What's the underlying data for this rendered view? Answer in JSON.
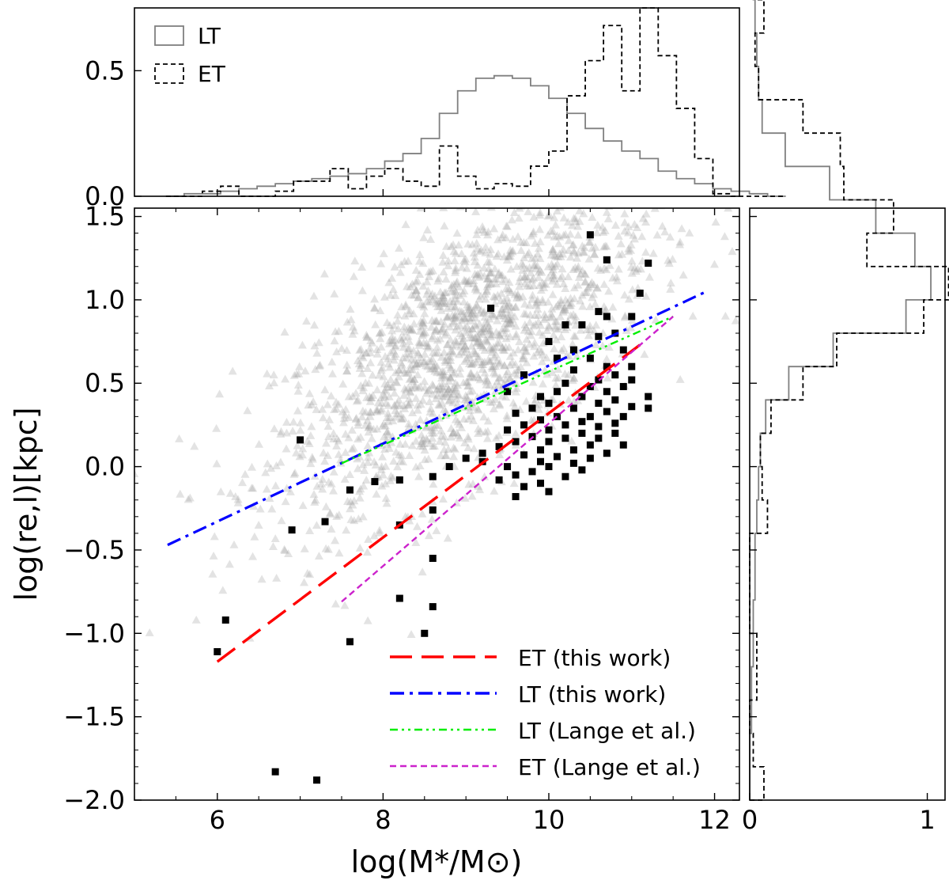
{
  "chart_data": [
    {
      "panel": "main-scatter",
      "type": "scatter",
      "xlabel": "log(M*/M⊙)",
      "ylabel": "log(re,l)[kpc]",
      "xlim": [
        5.0,
        12.3
      ],
      "ylim": [
        -2.0,
        1.55
      ],
      "xticks": [
        6,
        8,
        10,
        12
      ],
      "xtick_labels": [
        "6",
        "8",
        "10",
        "12"
      ],
      "yticks": [
        -2.0,
        -1.5,
        -1.0,
        -0.5,
        0.0,
        0.5,
        1.0,
        1.5
      ],
      "ytick_labels": [
        "−2.0",
        "−1.5",
        "−1.0",
        "−0.5",
        "0.0",
        "0.5",
        "1.0",
        "1.5"
      ],
      "legend_position": "lower-right",
      "scatter_series": [
        {
          "name": "LT",
          "marker": "triangle",
          "color": "#999999",
          "description": "late-type galaxies (dense cloud, ~2000 points centred near log M*=9, log re=0.3)",
          "center": [
            9.0,
            0.3
          ],
          "n_points": 1800
        },
        {
          "name": "ET",
          "marker": "square",
          "color": "#000000",
          "points": [
            [
              10.5,
              1.39
            ],
            [
              10.7,
              1.24
            ],
            [
              11.2,
              1.22
            ],
            [
              11.1,
              1.04
            ],
            [
              10.6,
              0.93
            ],
            [
              9.3,
              0.95
            ],
            [
              10.7,
              0.9
            ],
            [
              11.0,
              0.9
            ],
            [
              10.2,
              0.85
            ],
            [
              10.4,
              0.85
            ],
            [
              10.8,
              0.8
            ],
            [
              10.6,
              0.78
            ],
            [
              10.0,
              0.75
            ],
            [
              10.3,
              0.7
            ],
            [
              10.9,
              0.7
            ],
            [
              10.1,
              0.65
            ],
            [
              10.5,
              0.65
            ],
            [
              10.7,
              0.6
            ],
            [
              11.0,
              0.6
            ],
            [
              10.3,
              0.58
            ],
            [
              10.8,
              0.55
            ],
            [
              9.7,
              0.55
            ],
            [
              10.6,
              0.52
            ],
            [
              11.0,
              0.52
            ],
            [
              10.2,
              0.5
            ],
            [
              10.5,
              0.48
            ],
            [
              10.9,
              0.48
            ],
            [
              9.5,
              0.45
            ],
            [
              10.1,
              0.45
            ],
            [
              10.7,
              0.45
            ],
            [
              9.9,
              0.42
            ],
            [
              10.4,
              0.42
            ],
            [
              10.8,
              0.4
            ],
            [
              11.2,
              0.42
            ],
            [
              10.0,
              0.38
            ],
            [
              10.6,
              0.38
            ],
            [
              11.0,
              0.36
            ],
            [
              9.8,
              0.35
            ],
            [
              10.3,
              0.35
            ],
            [
              10.7,
              0.33
            ],
            [
              11.2,
              0.35
            ],
            [
              9.6,
              0.32
            ],
            [
              10.1,
              0.3
            ],
            [
              10.5,
              0.3
            ],
            [
              10.9,
              0.3
            ],
            [
              9.9,
              0.28
            ],
            [
              10.4,
              0.27
            ],
            [
              10.8,
              0.26
            ],
            [
              9.7,
              0.25
            ],
            [
              10.2,
              0.25
            ],
            [
              10.6,
              0.24
            ],
            [
              9.5,
              0.22
            ],
            [
              10.0,
              0.22
            ],
            [
              10.4,
              0.2
            ],
            [
              10.8,
              0.2
            ],
            [
              9.8,
              0.18
            ],
            [
              10.2,
              0.17
            ],
            [
              10.6,
              0.17
            ],
            [
              9.6,
              0.15
            ],
            [
              10.0,
              0.15
            ],
            [
              10.5,
              0.13
            ],
            [
              10.9,
              0.13
            ],
            [
              9.4,
              0.12
            ],
            [
              9.9,
              0.1
            ],
            [
              10.3,
              0.1
            ],
            [
              10.7,
              0.08
            ],
            [
              9.2,
              0.08
            ],
            [
              9.7,
              0.07
            ],
            [
              10.1,
              0.06
            ],
            [
              10.5,
              0.05
            ],
            [
              9.9,
              0.03
            ],
            [
              10.3,
              0.02
            ],
            [
              9.5,
              0.0
            ],
            [
              10.0,
              0.0
            ],
            [
              10.4,
              -0.02
            ],
            [
              9.8,
              -0.03
            ],
            [
              9.2,
              0.03
            ],
            [
              9.6,
              -0.05
            ],
            [
              10.2,
              -0.06
            ],
            [
              9.4,
              -0.08
            ],
            [
              9.9,
              -0.1
            ],
            [
              9.7,
              -0.12
            ],
            [
              10.0,
              -0.15
            ],
            [
              9.6,
              -0.18
            ],
            [
              9.0,
              0.05
            ],
            [
              8.8,
              0.0
            ],
            [
              8.6,
              -0.06
            ],
            [
              8.2,
              -0.08
            ],
            [
              7.9,
              -0.09
            ],
            [
              7.6,
              -0.14
            ],
            [
              7.3,
              -0.33
            ],
            [
              6.9,
              -0.38
            ],
            [
              8.6,
              -0.26
            ],
            [
              8.2,
              -0.35
            ],
            [
              8.6,
              -0.55
            ],
            [
              8.2,
              -0.79
            ],
            [
              8.6,
              -0.84
            ],
            [
              8.5,
              -1.0
            ],
            [
              7.6,
              -1.05
            ],
            [
              6.1,
              -0.92
            ],
            [
              6.0,
              -1.11
            ],
            [
              7.0,
              0.16
            ],
            [
              6.7,
              -1.83
            ],
            [
              7.2,
              -1.88
            ]
          ]
        }
      ],
      "fit_lines": [
        {
          "name": "ET (this work)",
          "style": "long-dash",
          "color": "#ff0000",
          "x": [
            6.0,
            11.1
          ],
          "y": [
            -1.17,
            0.73
          ]
        },
        {
          "name": "LT (this work)",
          "style": "dash-dot",
          "color": "#0000ff",
          "x": [
            5.4,
            11.9
          ],
          "y": [
            -0.47,
            1.05
          ]
        },
        {
          "name": "LT (Lange et al.)",
          "style": "dash-dot-dot",
          "color": "#00ee00",
          "x": [
            7.5,
            11.5
          ],
          "y": [
            0.02,
            0.9
          ]
        },
        {
          "name": "ET (Lange et al.)",
          "style": "short-dash",
          "color": "#cc22cc",
          "x": [
            7.5,
            11.5
          ],
          "y": [
            -0.81,
            0.9
          ]
        }
      ],
      "legend": [
        "ET (this work)",
        "LT (this work)",
        "LT (Lange et al.)",
        "ET (Lange et al.)"
      ]
    },
    {
      "panel": "top-histogram",
      "type": "histogram",
      "xlim": [
        5.0,
        12.3
      ],
      "ylim": [
        0.0,
        0.75
      ],
      "yticks": [
        0.0,
        0.5
      ],
      "ytick_labels": [
        "0.0",
        "0.5"
      ],
      "legend_position": "top-left",
      "legend": [
        "LT",
        "ET"
      ],
      "bin_width": 0.22,
      "bin_start": 5.38,
      "series": [
        {
          "name": "LT",
          "style": "solid",
          "color": "#808080",
          "values": [
            0.0,
            0.01,
            0.01,
            0.02,
            0.03,
            0.04,
            0.05,
            0.06,
            0.07,
            0.08,
            0.09,
            0.11,
            0.14,
            0.17,
            0.23,
            0.33,
            0.42,
            0.47,
            0.48,
            0.47,
            0.44,
            0.39,
            0.33,
            0.27,
            0.22,
            0.18,
            0.15,
            0.1,
            0.07,
            0.05,
            0.03,
            0.02,
            0.01,
            0.0
          ]
        },
        {
          "name": "ET",
          "style": "dashed",
          "color": "#000000",
          "values": [
            0.0,
            0.0,
            0.02,
            0.04,
            0.0,
            0.0,
            0.02,
            0.06,
            0.06,
            0.11,
            0.03,
            0.08,
            0.11,
            0.06,
            0.04,
            0.2,
            0.08,
            0.03,
            0.05,
            0.04,
            0.12,
            0.18,
            0.4,
            0.54,
            0.68,
            0.42,
            0.75,
            0.56,
            0.35,
            0.15,
            0.01,
            0.0,
            0.0,
            0.0
          ]
        }
      ]
    },
    {
      "panel": "right-histogram",
      "type": "histogram",
      "orientation": "horizontal",
      "xlim": [
        0.0,
        1.1
      ],
      "xticks": [
        0,
        1
      ],
      "xtick_labels": [
        "0",
        "1"
      ],
      "bin_width": 0.2,
      "bin_start": -2.0,
      "series": [
        {
          "name": "LT",
          "style": "solid",
          "color": "#808080",
          "values": [
            0.0,
            0.0,
            0.01,
            0.01,
            0.02,
            0.02,
            0.03,
            0.03,
            0.04,
            0.05,
            0.06,
            0.09,
            0.22,
            0.47,
            0.88,
            1.02,
            0.93,
            0.71,
            0.45,
            0.2,
            0.07,
            0.05,
            0.04,
            0.03,
            0.02
          ]
        },
        {
          "name": "ET",
          "style": "dashed",
          "color": "#000000",
          "values": [
            0.08,
            0.02,
            0.0,
            0.04,
            0.04,
            0.0,
            0.0,
            0.0,
            0.1,
            0.07,
            0.06,
            0.12,
            0.3,
            0.49,
            0.98,
            1.12,
            0.66,
            0.81,
            0.53,
            0.51,
            0.3,
            0.05,
            0.03,
            0.08,
            0.04
          ]
        }
      ]
    }
  ]
}
